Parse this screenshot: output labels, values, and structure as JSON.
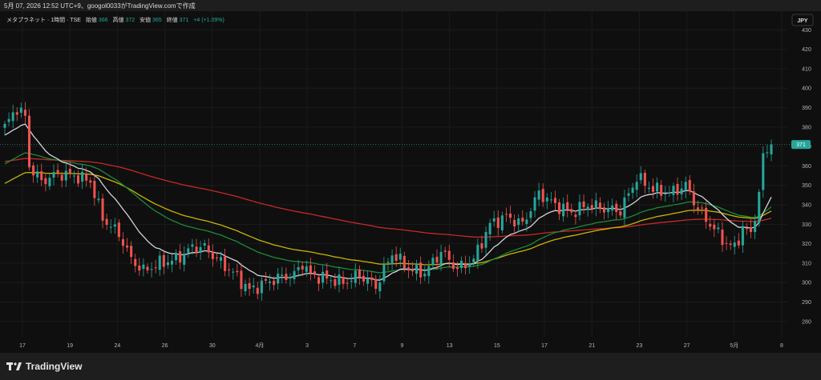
{
  "header": {
    "stamp": "5月 07, 2026 12:52 UTC+9、googol0033がTradingView.comで作成"
  },
  "legend": {
    "symbol": "メタプラネット · 1時間 · TSE",
    "open_label": "始値",
    "open": "366",
    "high_label": "高値",
    "high": "372",
    "low_label": "安値",
    "low": "365",
    "close_label": "終値",
    "close": "371",
    "change": "+4 (+1.09%)"
  },
  "currency": "JPY",
  "last_price": "371",
  "footer": {
    "brand": "TradingView"
  },
  "colors": {
    "up": "#26a69a",
    "down": "#ef5350",
    "ma_fast": "#d1d4dc",
    "ma_mid1": "#1b8a3a",
    "ma_mid2": "#c8b400",
    "ma_slow": "#c62828"
  },
  "chart_data": {
    "type": "candlestick",
    "y_ticks": [
      280,
      290,
      300,
      310,
      320,
      330,
      340,
      350,
      360,
      370,
      380,
      390,
      400,
      410,
      420,
      430
    ],
    "ylim": [
      275,
      433
    ],
    "x_tick_labels": [
      "17",
      "19",
      "24",
      "26",
      "30",
      "4月",
      "3",
      "7",
      "9",
      "13",
      "15",
      "17",
      "21",
      "23",
      "27",
      "5月",
      "8"
    ],
    "price_anchors": [
      [
        0,
        380
      ],
      [
        3,
        390
      ],
      [
        5,
        385
      ],
      [
        6,
        360
      ],
      [
        9,
        352
      ],
      [
        13,
        356
      ],
      [
        17,
        355
      ],
      [
        21,
        352
      ],
      [
        24,
        333
      ],
      [
        28,
        325
      ],
      [
        31,
        312
      ],
      [
        34,
        306
      ],
      [
        38,
        310
      ],
      [
        42,
        312
      ],
      [
        46,
        318
      ],
      [
        49,
        318
      ],
      [
        52,
        312
      ],
      [
        56,
        305
      ],
      [
        60,
        296
      ],
      [
        64,
        300
      ],
      [
        68,
        303
      ],
      [
        71,
        304
      ],
      [
        73,
        310
      ],
      [
        75,
        304
      ],
      [
        79,
        302
      ],
      [
        83,
        300
      ],
      [
        87,
        304
      ],
      [
        91,
        298
      ],
      [
        95,
        315
      ],
      [
        99,
        307
      ],
      [
        103,
        305
      ],
      [
        107,
        316
      ],
      [
        111,
        307
      ],
      [
        115,
        312
      ],
      [
        119,
        330
      ],
      [
        123,
        334
      ],
      [
        127,
        330
      ],
      [
        131,
        346
      ],
      [
        135,
        340
      ],
      [
        139,
        336
      ],
      [
        143,
        340
      ],
      [
        147,
        338
      ],
      [
        151,
        337
      ],
      [
        155,
        354
      ],
      [
        159,
        348
      ],
      [
        163,
        346
      ],
      [
        167,
        350
      ],
      [
        170,
        338
      ],
      [
        173,
        330
      ],
      [
        177,
        320
      ],
      [
        179,
        318
      ],
      [
        181,
        328
      ],
      [
        183,
        325
      ],
      [
        185,
        345
      ],
      [
        186,
        365
      ],
      [
        188,
        371
      ]
    ],
    "ma_periods": {
      "fast": 14,
      "mid1": 40,
      "mid2": 60,
      "slow": 150
    },
    "ma_seed": {
      "fast": 375,
      "mid1": 360,
      "mid2": 350,
      "slow": 362
    }
  }
}
